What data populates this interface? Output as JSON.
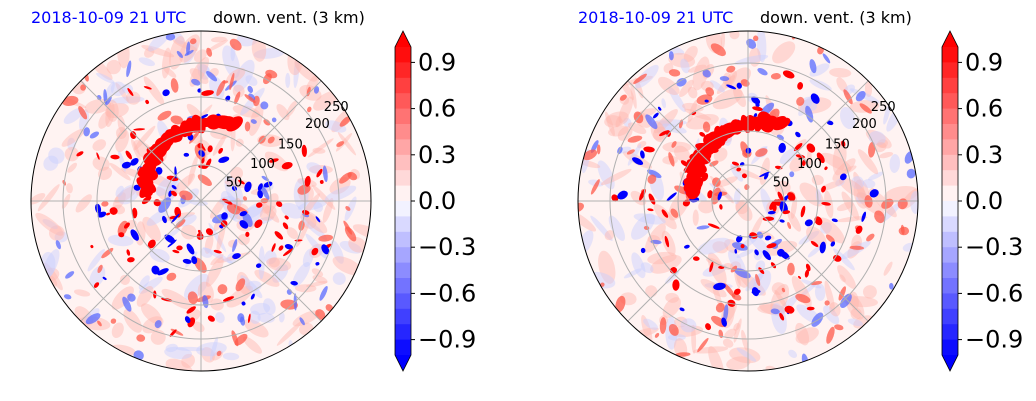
{
  "chart_data": [
    {
      "type": "heatmap",
      "projection": "polar",
      "time_label": "2018-10-09 21 UTC",
      "title": "down. vent. (3 km)",
      "radial_ticks": [
        "50",
        "100",
        "150",
        "200",
        "250"
      ],
      "colorbar": {
        "ticks": [
          "0.9",
          "0.6",
          "0.3",
          "0.0",
          "−0.3",
          "−0.6",
          "−0.9"
        ],
        "range": [
          -1.0,
          1.0
        ],
        "extend": "both",
        "colormap": "bwr"
      }
    },
    {
      "type": "heatmap",
      "projection": "polar",
      "time_label": "2018-10-09 21 UTC",
      "title": "down. vent. (3 km)",
      "radial_ticks": [
        "50",
        "100",
        "150",
        "200",
        "250"
      ],
      "colorbar": {
        "ticks": [
          "0.9",
          "0.6",
          "0.3",
          "0.0",
          "−0.3",
          "−0.6",
          "−0.9"
        ],
        "range": [
          -1.0,
          1.0
        ],
        "extend": "both",
        "colormap": "bwr"
      }
    }
  ],
  "colors": {
    "positive": "#ff0000",
    "negative": "#0000ff",
    "neutral": "#ffffff",
    "grid": "#b0b0b0",
    "time_label": "#0000ff"
  }
}
